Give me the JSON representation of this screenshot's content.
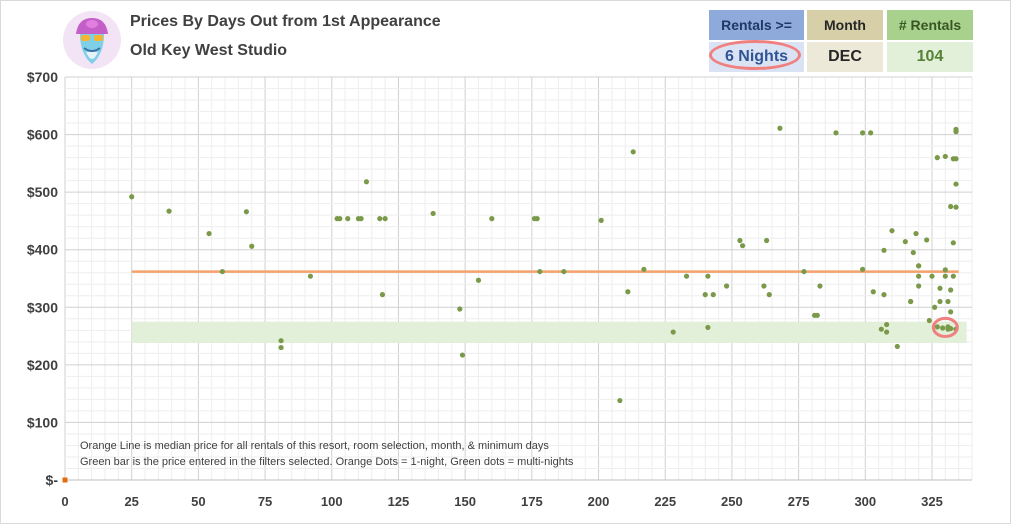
{
  "header": {
    "title": "Prices By Days Out from 1st Appearance",
    "subtitle": "Old Key West Studio",
    "logo": "genie-mascot-icon"
  },
  "filters": [
    {
      "label": "Rentals >=",
      "value": "6 Nights"
    },
    {
      "label": "Month",
      "value": "DEC"
    },
    {
      "label": "# Rentals",
      "value": "104"
    }
  ],
  "colors": {
    "median_line": "#f4a16b",
    "green_band": "#e2efd9",
    "dot_multi": "#7a9a4a",
    "dot_single": "#e46c0a",
    "highlight": "#f08080"
  },
  "chart_data": {
    "type": "scatter",
    "title": "Prices By Days Out from 1st Appearance",
    "subtitle": "Old Key West Studio",
    "xlim": [
      0,
      340
    ],
    "ylim": [
      0,
      700
    ],
    "x_ticks": [
      "0",
      "25",
      "50",
      "75",
      "100",
      "125",
      "150",
      "175",
      "200",
      "225",
      "250",
      "275",
      "300",
      "325"
    ],
    "y_ticks": [
      "$-",
      "$100",
      "$200",
      "$300",
      "$400",
      "$500",
      "$600",
      "$700"
    ],
    "median_price": 362,
    "green_band": {
      "y_low": 238,
      "y_high": 275,
      "x_start": 25,
      "x_end": 338
    },
    "grid": true,
    "notes": [
      "Orange Line is median price for all rentals of this resort, room selection, month, & minimum days",
      "Green bar is the price entered in the filters selected. Orange Dots = 1-night, Green dots = multi-nights"
    ],
    "series": [
      {
        "kind": "multi-night",
        "points": [
          [
            25,
            492
          ],
          [
            39,
            467
          ],
          [
            54,
            428
          ],
          [
            59,
            362
          ],
          [
            68,
            466
          ],
          [
            70,
            406
          ],
          [
            81,
            242
          ],
          [
            81,
            230
          ],
          [
            92,
            354
          ],
          [
            102,
            454
          ],
          [
            103,
            454
          ],
          [
            106,
            454
          ],
          [
            110,
            454
          ],
          [
            111,
            454
          ],
          [
            113,
            518
          ],
          [
            118,
            454
          ],
          [
            119,
            322
          ],
          [
            120,
            454
          ],
          [
            138,
            463
          ],
          [
            148,
            297
          ],
          [
            149,
            217
          ],
          [
            155,
            347
          ],
          [
            160,
            454
          ],
          [
            176,
            454
          ],
          [
            177,
            454
          ],
          [
            178,
            362
          ],
          [
            187,
            362
          ],
          [
            201,
            451
          ],
          [
            208,
            138
          ],
          [
            211,
            327
          ],
          [
            213,
            570
          ],
          [
            217,
            366
          ],
          [
            228,
            257
          ],
          [
            233,
            354
          ],
          [
            240,
            322
          ],
          [
            241,
            265
          ],
          [
            241,
            354
          ],
          [
            243,
            322
          ],
          [
            248,
            337
          ],
          [
            253,
            416
          ],
          [
            254,
            407
          ],
          [
            262,
            337
          ],
          [
            263,
            416
          ],
          [
            264,
            322
          ],
          [
            268,
            611
          ],
          [
            277,
            362
          ],
          [
            281,
            286
          ],
          [
            282,
            286
          ],
          [
            283,
            337
          ],
          [
            289,
            603
          ],
          [
            299,
            366
          ],
          [
            299,
            603
          ],
          [
            302,
            603
          ],
          [
            303,
            327
          ],
          [
            306,
            262
          ],
          [
            307,
            399
          ],
          [
            307,
            322
          ],
          [
            308,
            270
          ],
          [
            308,
            257
          ],
          [
            310,
            433
          ],
          [
            312,
            232
          ],
          [
            315,
            414
          ],
          [
            317,
            310
          ],
          [
            317,
            310
          ],
          [
            318,
            395
          ],
          [
            319,
            428
          ],
          [
            320,
            372
          ],
          [
            320,
            354
          ],
          [
            320,
            337
          ],
          [
            320,
            372
          ],
          [
            323,
            417
          ],
          [
            324,
            277
          ],
          [
            325,
            354
          ],
          [
            326,
            300
          ],
          [
            327,
            266
          ],
          [
            327,
            560
          ],
          [
            328,
            333
          ],
          [
            328,
            310
          ],
          [
            329,
            264
          ],
          [
            330,
            562
          ],
          [
            330,
            365
          ],
          [
            330,
            354
          ],
          [
            331,
            310
          ],
          [
            331,
            266
          ],
          [
            331,
            262
          ],
          [
            332,
            330
          ],
          [
            332,
            263
          ],
          [
            332,
            475
          ],
          [
            332,
            292
          ],
          [
            333,
            412
          ],
          [
            333,
            558
          ],
          [
            333,
            354
          ],
          [
            334,
            514
          ],
          [
            334,
            558
          ],
          [
            334,
            609
          ],
          [
            334,
            605
          ],
          [
            334,
            474
          ],
          [
            334,
            262
          ]
        ]
      },
      {
        "kind": "1-night",
        "points": [
          [
            0,
            0
          ]
        ]
      }
    ],
    "highlight_ring": {
      "x": 330,
      "y": 265
    }
  }
}
